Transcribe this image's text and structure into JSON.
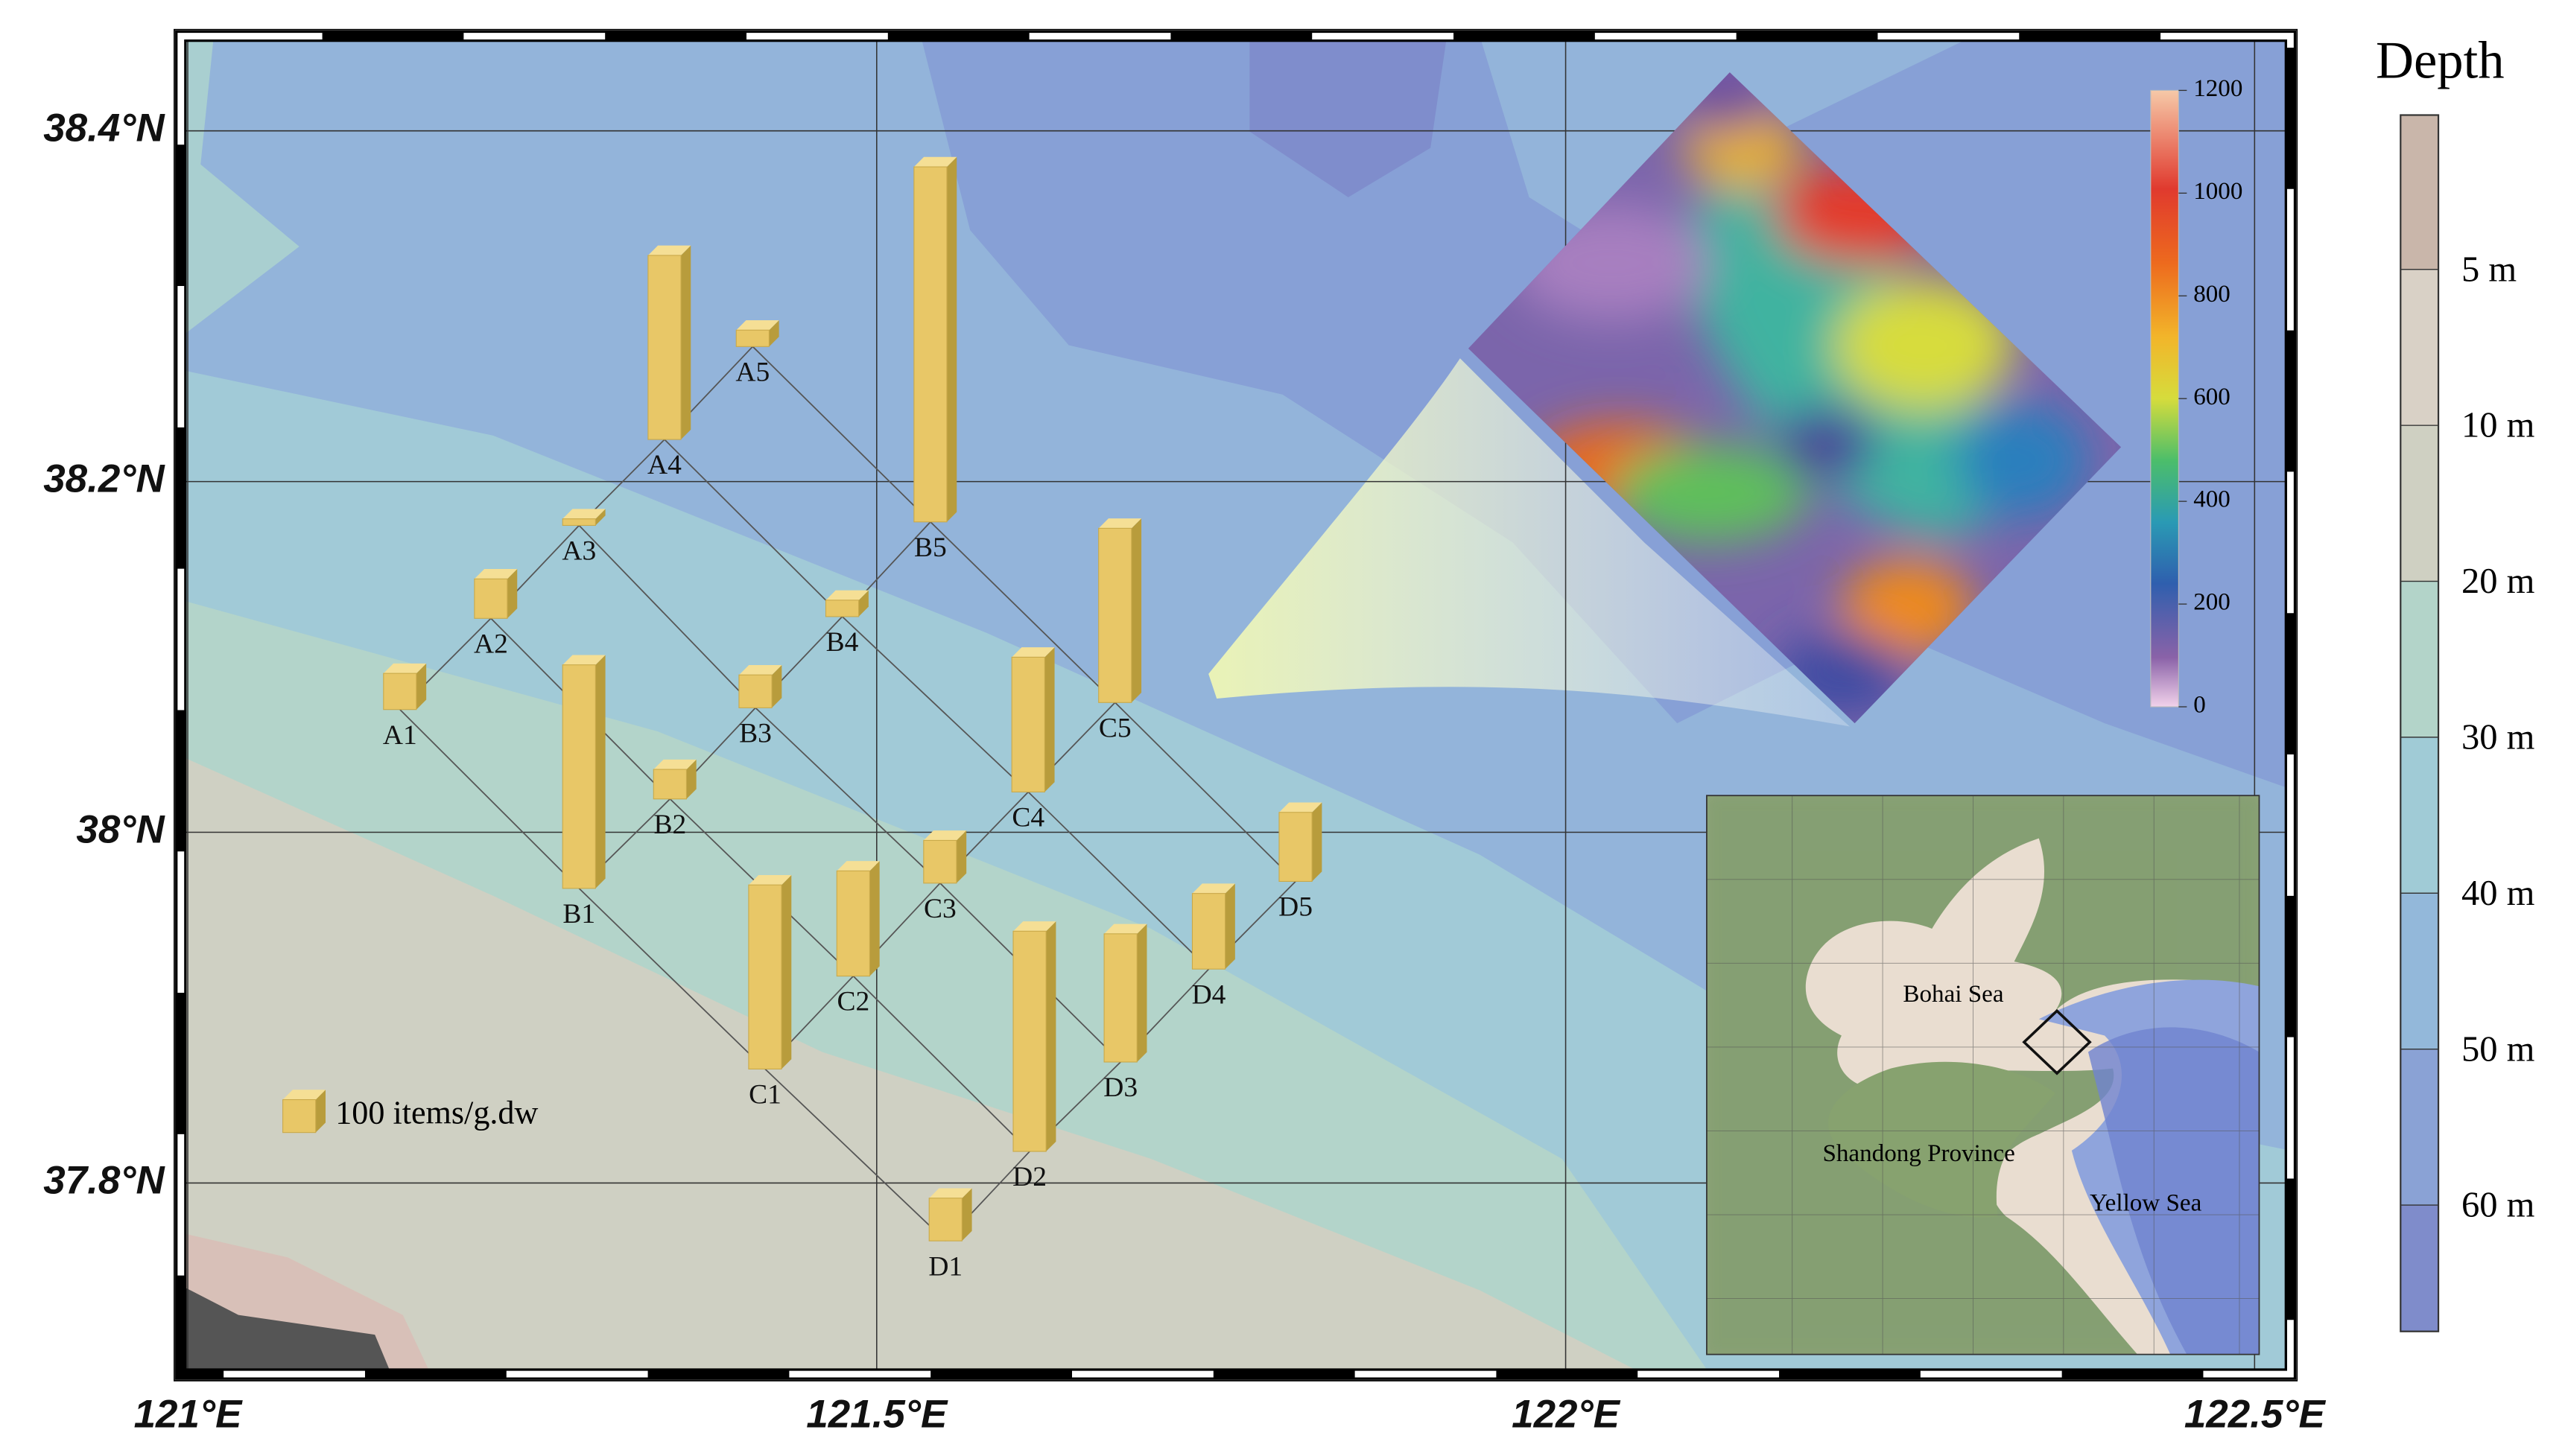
{
  "chart_data": {
    "type": "bar3d_map",
    "xlim": [
      120.995,
      122.526
    ],
    "ylim": [
      37.691,
      38.454
    ],
    "xticks": [
      {
        "value": 121,
        "label": "121°E"
      },
      {
        "value": 121.5,
        "label": "121.5°E"
      },
      {
        "value": 122,
        "label": "122°E"
      },
      {
        "value": 122.5,
        "label": "122.5°E"
      }
    ],
    "yticks": [
      {
        "value": 37.8,
        "label": "37.8°N"
      },
      {
        "value": 38,
        "label": "38°N"
      },
      {
        "value": 38.2,
        "label": "38.2°N"
      },
      {
        "value": 38.4,
        "label": "38.4°N"
      }
    ],
    "grid": true,
    "color": "#e8c767",
    "categories": [
      "A1",
      "A2",
      "A3",
      "A4",
      "A5",
      "B1",
      "B2",
      "B3",
      "B4",
      "B5",
      "C1",
      "C2",
      "C3",
      "C4",
      "C5",
      "D1",
      "D2",
      "D3",
      "D4",
      "D5"
    ],
    "lon": [
      121.154,
      121.22,
      121.284,
      121.346,
      121.41,
      121.284,
      121.35,
      121.412,
      121.475,
      121.539,
      121.419,
      121.483,
      121.546,
      121.61,
      121.673,
      121.55,
      121.611,
      121.677,
      121.741,
      121.804
    ],
    "lat": [
      38.07,
      38.122,
      38.175,
      38.224,
      38.277,
      37.968,
      38.019,
      38.071,
      38.123,
      38.177,
      37.865,
      37.918,
      37.971,
      38.023,
      38.074,
      37.767,
      37.818,
      37.869,
      37.922,
      37.972
    ],
    "values": [
      110,
      120,
      20,
      560,
      50,
      680,
      90,
      100,
      50,
      1080,
      560,
      320,
      130,
      410,
      530,
      130,
      670,
      390,
      230,
      210
    ],
    "legend": {
      "value": 100,
      "label": "100 items/g.dw"
    },
    "colorbar": {
      "lim": [
        0,
        1200
      ],
      "ticks": [
        0,
        200,
        400,
        600,
        800,
        1000,
        1200
      ]
    },
    "depth_legend": {
      "title": "Depth",
      "labels": [
        "5 m",
        "10 m",
        "20 m",
        "30 m",
        "40 m",
        "50 m",
        "60 m"
      ],
      "colors": [
        "#c9b6aa",
        "#d9d1c6",
        "#cfd0c2",
        "#b3d4c9",
        "#a0cbd6",
        "#93b8da",
        "#8aa2d5",
        "#7f8ccb"
      ]
    },
    "inset_labels": [
      "Bohai Sea",
      "Shandong Province",
      "Yellow Sea"
    ]
  }
}
